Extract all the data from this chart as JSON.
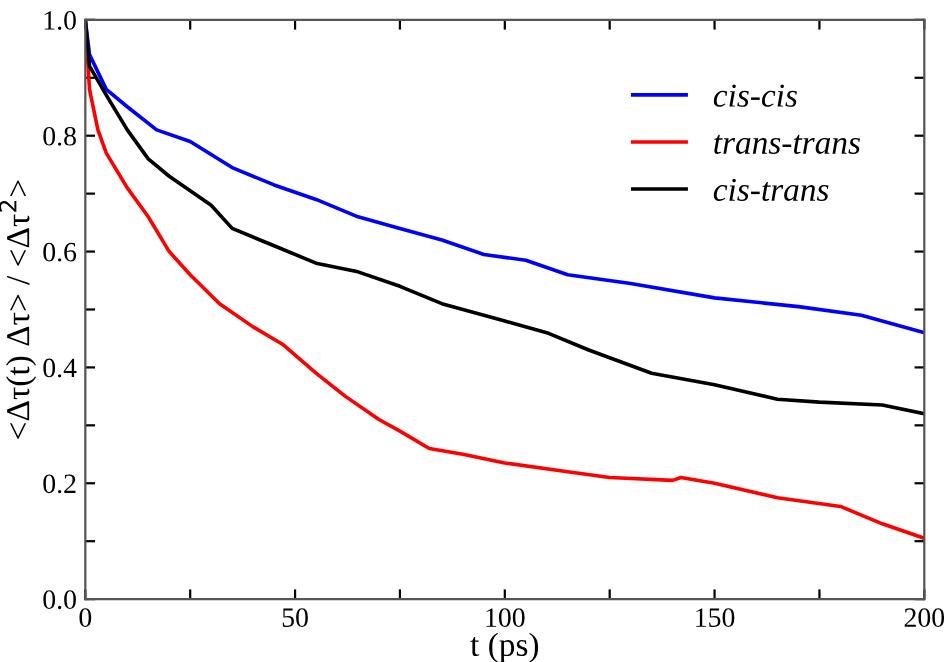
{
  "chart_data": {
    "type": "line",
    "xlabel": "t (ps)",
    "ylabel": "<Δτ(t) Δτ> / <Δτ$^{2}$>",
    "xlim": [
      0,
      200
    ],
    "ylim": [
      0,
      1
    ],
    "xticks": [
      0,
      {
        "value": 25,
        "label": null
      },
      50,
      {
        "value": 75,
        "label": null
      },
      100,
      {
        "value": 125,
        "label": null
      },
      150,
      {
        "value": 175,
        "label": null
      },
      200
    ],
    "yticks": [
      {
        "value": 0,
        "label": "0.0"
      },
      {
        "value": 0.1,
        "label": null
      },
      {
        "value": 0.2,
        "label": "0.2"
      },
      {
        "value": 0.3,
        "label": null
      },
      {
        "value": 0.4,
        "label": "0.4"
      },
      {
        "value": 0.5,
        "label": null
      },
      {
        "value": 0.6,
        "label": "0.6"
      },
      {
        "value": 0.7,
        "label": null
      },
      {
        "value": 0.8,
        "label": "0.8"
      },
      {
        "value": 0.9,
        "label": null
      },
      {
        "value": 1,
        "label": "1.0"
      }
    ],
    "grid": false,
    "legend": "top right",
    "line_style": "solid",
    "series": [
      {
        "name": "cis-cis",
        "color": "#0000ff",
        "x": [
          0,
          1,
          5,
          10,
          17,
          25,
          35,
          45,
          55,
          65,
          75,
          85,
          95,
          105,
          115,
          130,
          150,
          170,
          185,
          200
        ],
        "values": [
          1.0,
          0.94,
          0.88,
          0.85,
          0.81,
          0.79,
          0.745,
          0.715,
          0.69,
          0.66,
          0.64,
          0.62,
          0.595,
          0.585,
          0.56,
          0.545,
          0.52,
          0.505,
          0.49,
          0.46
        ]
      },
      {
        "name": "trans-trans",
        "color": "#ff0000",
        "x": [
          0,
          1,
          3,
          5,
          10,
          15,
          20,
          25,
          32,
          40,
          47,
          55,
          62,
          70,
          75,
          82,
          90,
          100,
          115,
          125,
          140,
          142,
          150,
          165,
          180,
          190,
          200
        ],
        "values": [
          1.0,
          0.88,
          0.81,
          0.77,
          0.71,
          0.66,
          0.6,
          0.56,
          0.51,
          0.47,
          0.44,
          0.39,
          0.35,
          0.31,
          0.29,
          0.26,
          0.25,
          0.235,
          0.22,
          0.21,
          0.205,
          0.21,
          0.2,
          0.175,
          0.16,
          0.13,
          0.105
        ]
      },
      {
        "name": "cis-trans",
        "color": "#000000",
        "x": [
          0,
          1,
          5,
          10,
          15,
          20,
          30,
          35,
          45,
          55,
          65,
          75,
          85,
          100,
          110,
          120,
          135,
          150,
          165,
          175,
          190,
          200
        ],
        "values": [
          1.0,
          0.92,
          0.87,
          0.81,
          0.76,
          0.73,
          0.68,
          0.64,
          0.61,
          0.58,
          0.565,
          0.54,
          0.51,
          0.48,
          0.46,
          0.43,
          0.39,
          0.37,
          0.345,
          0.34,
          0.335,
          0.32
        ]
      }
    ]
  }
}
